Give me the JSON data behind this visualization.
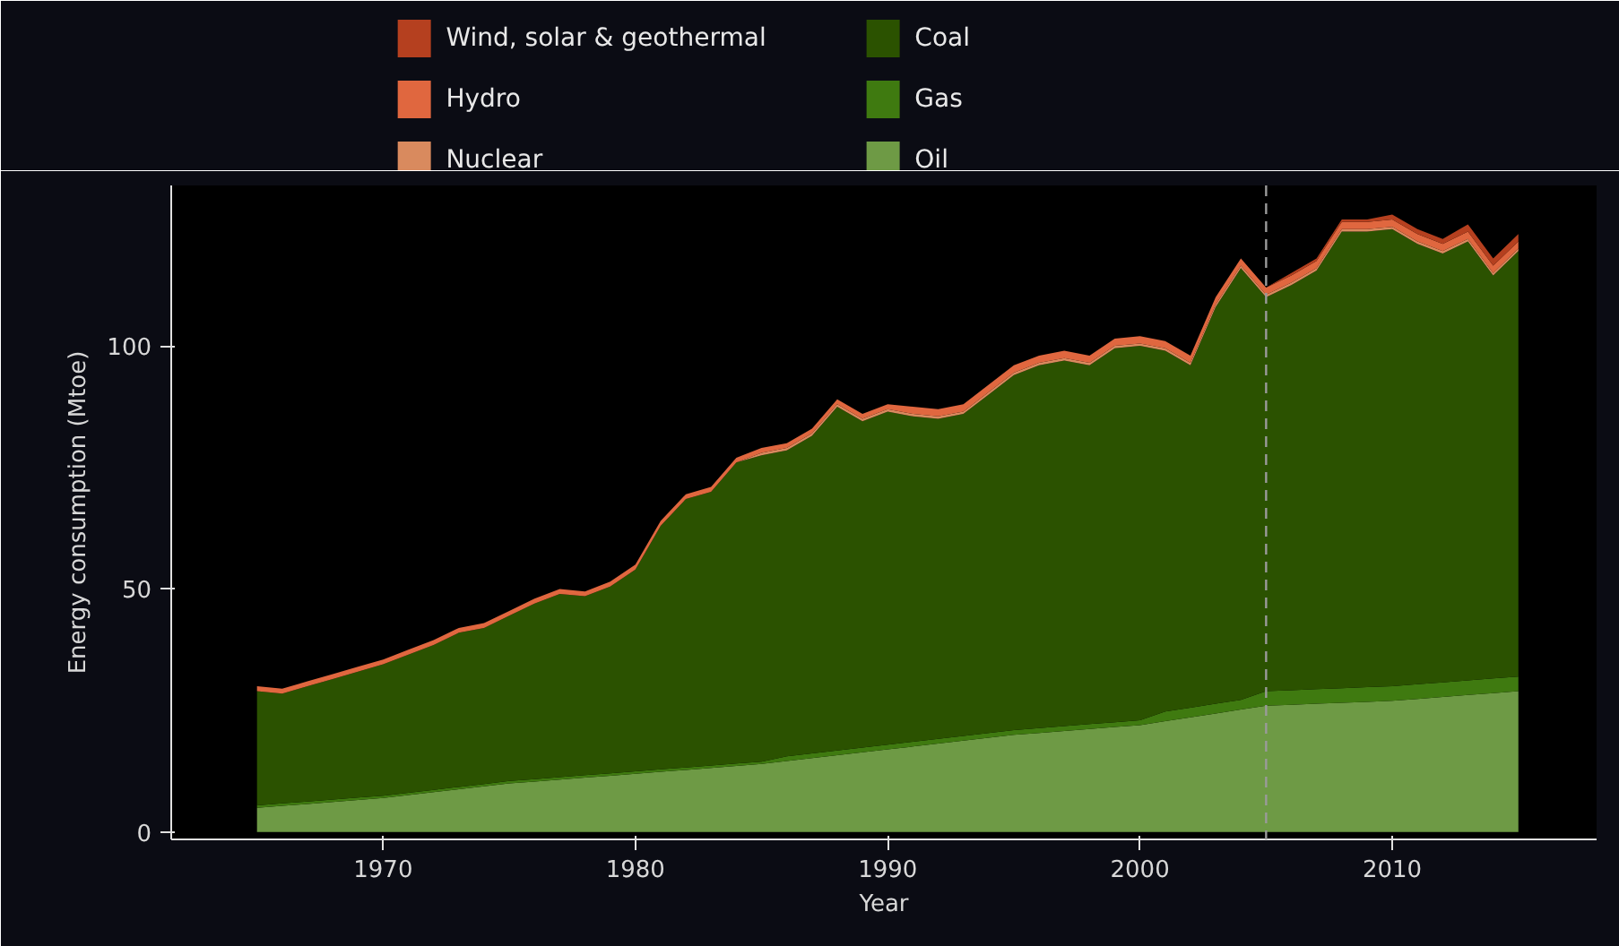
{
  "chart_data": {
    "type": "area",
    "stacked": true,
    "xlabel": "Year",
    "ylabel": "Energy consumption (Mtoe)",
    "x": [
      1965,
      1966,
      1967,
      1968,
      1969,
      1970,
      1971,
      1972,
      1973,
      1974,
      1975,
      1976,
      1977,
      1978,
      1979,
      1980,
      1981,
      1982,
      1983,
      1984,
      1985,
      1986,
      1987,
      1988,
      1989,
      1990,
      1991,
      1992,
      1993,
      1994,
      1995,
      1996,
      1997,
      1998,
      1999,
      2000,
      2001,
      2002,
      2003,
      2004,
      2005,
      2006,
      2007,
      2008,
      2009,
      2010,
      2011,
      2012,
      2013,
      2014,
      2015
    ],
    "series": [
      {
        "name": "Oil",
        "color": "#6e9a45",
        "values": [
          5,
          5.4,
          5.8,
          6.2,
          6.6,
          7,
          7.6,
          8.2,
          8.8,
          9.4,
          10,
          10.4,
          10.8,
          11.2,
          11.6,
          12,
          12.4,
          12.8,
          13.2,
          13.6,
          14,
          14.6,
          15.2,
          15.8,
          16.4,
          17,
          17.6,
          18.2,
          18.8,
          19.4,
          20,
          20.4,
          20.8,
          21.2,
          21.6,
          22,
          22.8,
          23.6,
          24.4,
          25.2,
          26,
          26.2,
          26.4,
          26.6,
          26.8,
          27,
          27.4,
          27.8,
          28.2,
          28.6,
          29
        ]
      },
      {
        "name": "Gas",
        "color": "#3f7a10",
        "values": [
          0.5,
          0.5,
          0.5,
          0.5,
          0.5,
          0.5,
          0.5,
          0.5,
          0.5,
          0.5,
          0.5,
          0.5,
          0.5,
          0.5,
          0.5,
          0.5,
          0.5,
          0.5,
          0.5,
          0.5,
          0.5,
          1,
          1,
          1,
          1,
          1,
          1,
          1,
          1,
          1,
          1,
          1,
          1,
          1,
          1,
          1,
          2,
          2,
          2,
          2,
          3,
          3,
          3,
          3,
          3,
          3,
          3,
          3,
          3,
          3,
          3
        ]
      },
      {
        "name": "Coal",
        "color": "#2b5200",
        "values": [
          23.5,
          22.6,
          23.7,
          24.8,
          25.9,
          27,
          28.4,
          29.8,
          31.7,
          32.1,
          34,
          36.1,
          37.7,
          36.8,
          38.4,
          41.5,
          50.1,
          55.2,
          56.3,
          61.9,
          63,
          62.9,
          65.3,
          70.7,
          67.1,
          68.5,
          66.9,
          65.8,
          66.2,
          69.6,
          73,
          74.6,
          75.2,
          73.8,
          76.9,
          77,
          74.2,
          70.4,
          81.6,
          88.8,
          81,
          83.3,
          86.1,
          93.9,
          93.7,
          94,
          90.6,
          88.2,
          90.3,
          82.9,
          87.5
        ]
      },
      {
        "name": "Nuclear",
        "color": "#d98a5e",
        "values": [
          0,
          0,
          0,
          0,
          0,
          0,
          0,
          0,
          0,
          0,
          0,
          0,
          0,
          0,
          0,
          0,
          0,
          0,
          0,
          0,
          0.5,
          0.5,
          0.5,
          0.5,
          0.5,
          0.5,
          0.5,
          0.5,
          0.5,
          0.5,
          0.5,
          0.5,
          0.5,
          0.5,
          0.5,
          0.5,
          0.5,
          0.5,
          0.5,
          0.5,
          0.5,
          0.5,
          0.5,
          0.5,
          0.5,
          0.5,
          0.5,
          0.5,
          0.5,
          0.5,
          0.5
        ]
      },
      {
        "name": "Hydro",
        "color": "#e0673f",
        "values": [
          1,
          1,
          1,
          1,
          1,
          1,
          1,
          1,
          1,
          1,
          1,
          1,
          1,
          1,
          1,
          1,
          1,
          1,
          1,
          1,
          1,
          1,
          1,
          1,
          1,
          1,
          1.5,
          1.5,
          1.5,
          1.5,
          1.5,
          1.5,
          1.5,
          1.5,
          1.5,
          1.5,
          1.5,
          1.5,
          1.5,
          1.5,
          1.5,
          1.5,
          1.5,
          1.5,
          1.5,
          1.5,
          1.5,
          1.5,
          1.5,
          1.5,
          1.5
        ]
      },
      {
        "name": "Wind, solar & geothermal",
        "color": "#b5401f",
        "values": [
          0,
          0,
          0,
          0,
          0,
          0,
          0,
          0,
          0,
          0,
          0,
          0,
          0,
          0,
          0,
          0,
          0,
          0,
          0,
          0,
          0,
          0,
          0,
          0,
          0,
          0,
          0,
          0,
          0,
          0,
          0,
          0,
          0,
          0,
          0,
          0,
          0,
          0,
          0,
          0,
          0,
          0.5,
          0.5,
          0.5,
          0.5,
          1,
          1,
          1,
          1.5,
          1.5,
          1.5
        ]
      }
    ],
    "xlim": [
      1961.6,
      2018.1
    ],
    "xticks": [
      1970,
      1980,
      1990,
      2000,
      2010
    ],
    "ylim": [
      -1.5,
      133
    ],
    "yticks": [
      0,
      50,
      100
    ],
    "ref_lines": [
      {
        "axis": "x",
        "value": 2005,
        "color": "#9a9a9a",
        "line_style": "dashed"
      }
    ],
    "legend": "top",
    "grid": false
  }
}
